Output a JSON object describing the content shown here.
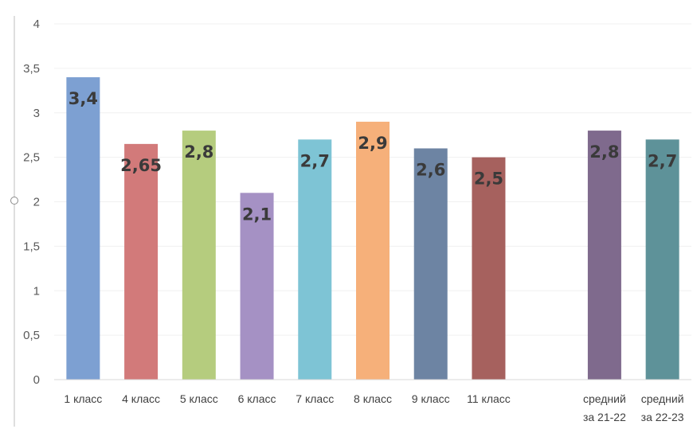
{
  "chart_data": {
    "type": "bar",
    "categories": [
      [
        "1 класс"
      ],
      [
        "4 класс"
      ],
      [
        "5 класс"
      ],
      [
        "6 класс"
      ],
      [
        "7 класс"
      ],
      [
        "8 класс"
      ],
      [
        "9 класс"
      ],
      [
        "11 класс"
      ],
      [
        "",
        ""
      ],
      [
        "средний",
        "за 21-22"
      ],
      [
        "средний",
        "за 22-23"
      ]
    ],
    "values": [
      3.4,
      2.65,
      2.8,
      2.1,
      2.7,
      2.9,
      2.6,
      2.5,
      null,
      2.8,
      2.7
    ],
    "data_labels": [
      "3,4",
      "2,65",
      "2,8",
      "2,1",
      "2,7",
      "2,9",
      "2,6",
      "2,5",
      "",
      "2,8",
      "2,7"
    ],
    "colors": [
      "#7da0d2",
      "#d27a7a",
      "#b5cc7e",
      "#a591c4",
      "#7ec4d5",
      "#f6b07a",
      "#6d84a3",
      "#a6615e",
      "",
      "#7f6a8d",
      "#5e9299"
    ],
    "y_ticks": [
      "0",
      "0,5",
      "1",
      "1,5",
      "2",
      "2,5",
      "3",
      "3,5",
      "4"
    ],
    "ylim": [
      0,
      4
    ],
    "title": "",
    "xlabel": "",
    "ylabel": "",
    "grid": true,
    "legend": "none"
  }
}
